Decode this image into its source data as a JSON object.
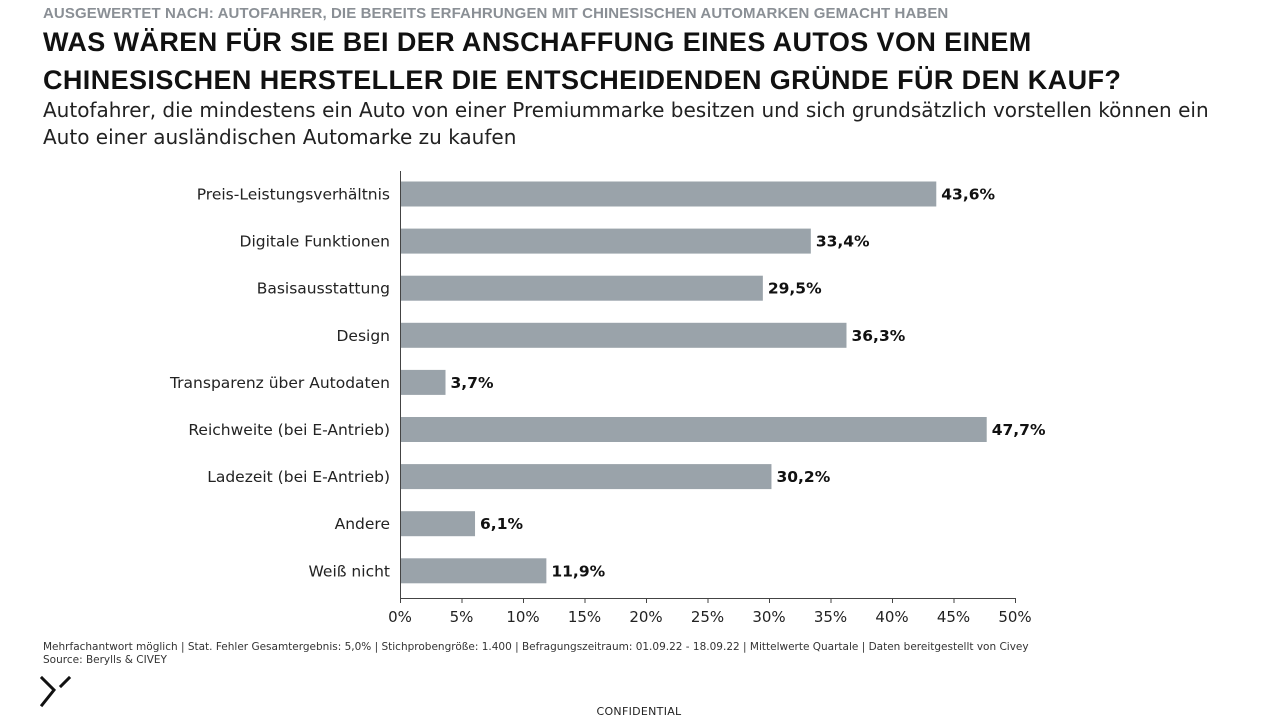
{
  "header": {
    "supertitle": "AUSGEWERTET NACH: AUTOFAHRER, DIE BEREITS ERFAHRUNGEN MIT CHINESISCHEN AUTOMARKEN GEMACHT HABEN",
    "title": "WAS WÄREN FÜR SIE BEI DER ANSCHAFFUNG EINES AUTOS VON EINEM CHINESISCHEN HERSTELLER DIE ENTSCHEIDENDEN GRÜNDE FÜR DEN KAUF?",
    "subtitle": "Autofahrer, die mindestens ein Auto von einer Premiummarke besitzen und sich grundsätzlich vorstellen können ein Auto einer ausländischen Automarke zu kaufen"
  },
  "chart_data": {
    "type": "bar",
    "orientation": "horizontal",
    "categories": [
      "Preis-Leistungsverhältnis",
      "Digitale Funktionen",
      "Basisausstattung",
      "Design",
      "Transparenz über Autodaten",
      "Reichweite (bei E-Antrieb)",
      "Ladezeit (bei E-Antrieb)",
      "Andere",
      "Weiß nicht"
    ],
    "values": [
      43.6,
      33.4,
      29.5,
      36.3,
      3.7,
      47.7,
      30.2,
      6.1,
      11.9
    ],
    "value_labels": [
      "43,6%",
      "33,4%",
      "29,5%",
      "36,3%",
      "3,7%",
      "47,7%",
      "30,2%",
      "6,1%",
      "11,9%"
    ],
    "xlim": [
      0,
      50
    ],
    "xticks": [
      0,
      5,
      10,
      15,
      20,
      25,
      30,
      35,
      40,
      45,
      50
    ],
    "xtick_labels": [
      "0%",
      "5%",
      "10%",
      "15%",
      "20%",
      "25%",
      "30%",
      "35%",
      "40%",
      "45%",
      "50%"
    ],
    "bar_color": "#9aa3aa",
    "grid": false,
    "legend": "none"
  },
  "footer": {
    "note": "Mehrfachantwort möglich | Stat. Fehler Gesamtergebnis: 5,0% | Stichprobengröße: 1.400 | Befragungszeitraum: 01.09.22 - 18.09.22 | Mittelwerte Quartale | Daten bereitgestellt von Civey",
    "source": "Source: Berylls & CIVEY",
    "confidential": "CONFIDENTIAL"
  },
  "logo": {
    "icon": "berylls-logo-icon"
  }
}
